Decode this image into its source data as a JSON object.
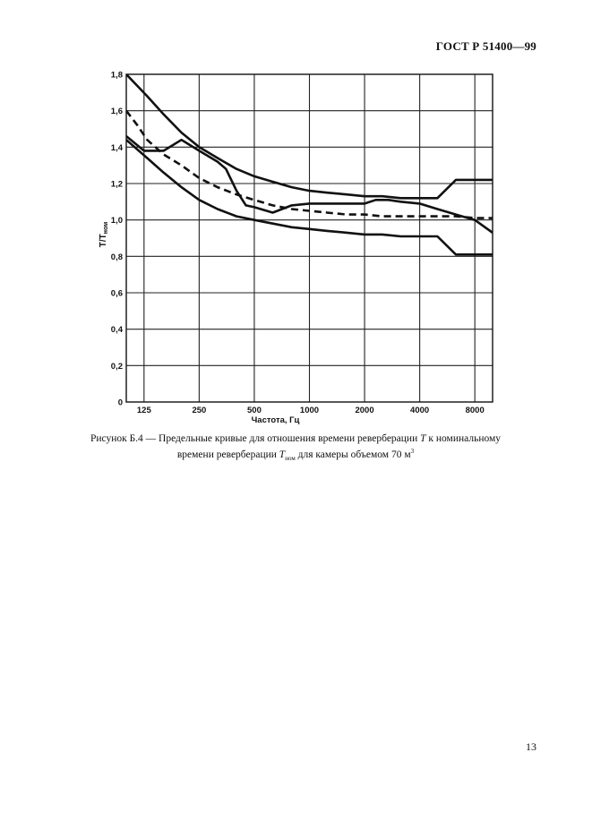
{
  "header": {
    "standard": "ГОСТ Р 51400—99"
  },
  "caption": {
    "prefix": "Рисунок Б.4 — Предельные кривые для отношения времени реверберации",
    "var_T": "T",
    "middle": "к номинальному времени реверберации",
    "var_Tnom": "T",
    "var_Tnom_sub": "ном",
    "suffix": "для камеры объемом 70 м",
    "unit_sup": "3"
  },
  "page_number": "13",
  "chart_data": {
    "type": "line",
    "xlabel": "Частота, Гц",
    "ylabel": "T/T",
    "ylabel_sub": "ном",
    "x_scale": "log",
    "xlim": [
      100,
      10000
    ],
    "ylim": [
      0,
      1.8
    ],
    "x_ticks": [
      125,
      250,
      500,
      1000,
      2000,
      4000,
      8000
    ],
    "x_tick_labels": [
      "125",
      "250",
      "500",
      "1000",
      "2000",
      "4000",
      "8000"
    ],
    "y_ticks": [
      0,
      0.2,
      0.4,
      0.6,
      0.8,
      1.0,
      1.2,
      1.4,
      1.6,
      1.8
    ],
    "y_tick_labels": [
      "0",
      "0,2",
      "0,4",
      "0,6",
      "0,8",
      "1,0",
      "1,2",
      "1,4",
      "1,6",
      "1,8"
    ],
    "grid": true,
    "series": [
      {
        "style": "solid",
        "x": [
          100,
          130,
          160,
          200,
          250,
          315,
          400,
          500,
          630,
          800,
          1000,
          1250,
          1600,
          2000,
          2500,
          3150,
          4000,
          5000,
          6300,
          8000,
          10000
        ],
        "y": [
          1.8,
          1.68,
          1.58,
          1.48,
          1.4,
          1.34,
          1.28,
          1.24,
          1.21,
          1.18,
          1.16,
          1.15,
          1.14,
          1.13,
          1.13,
          1.12,
          1.12,
          1.12,
          1.22,
          1.22,
          1.22
        ]
      },
      {
        "style": "solid",
        "x": [
          100,
          130,
          160,
          200,
          250,
          315,
          400,
          500,
          630,
          800,
          1000,
          1250,
          1600,
          2000,
          2500,
          3150,
          4000,
          5000,
          6300,
          8000,
          10000
        ],
        "y": [
          1.44,
          1.34,
          1.26,
          1.18,
          1.11,
          1.06,
          1.02,
          1.0,
          0.98,
          0.96,
          0.95,
          0.94,
          0.93,
          0.92,
          0.92,
          0.91,
          0.91,
          0.91,
          0.81,
          0.81,
          0.81
        ]
      },
      {
        "style": "dashed",
        "x": [
          100,
          115,
          130,
          160,
          200,
          250,
          315,
          400,
          500,
          630,
          800,
          1000,
          1250,
          1600,
          2000,
          2500,
          3150,
          4000,
          5000,
          6300,
          8000,
          10000
        ],
        "y": [
          1.6,
          1.52,
          1.44,
          1.36,
          1.3,
          1.23,
          1.18,
          1.14,
          1.11,
          1.08,
          1.06,
          1.05,
          1.04,
          1.03,
          1.03,
          1.02,
          1.02,
          1.02,
          1.02,
          1.02,
          1.01,
          1.01
        ]
      },
      {
        "style": "solid",
        "x": [
          100,
          125,
          160,
          200,
          250,
          315,
          350,
          400,
          450,
          500,
          630,
          800,
          1000,
          1250,
          1600,
          2000,
          2300,
          2700,
          3150,
          4000,
          5000,
          6300,
          8000,
          10000
        ],
        "y": [
          1.46,
          1.38,
          1.38,
          1.44,
          1.38,
          1.32,
          1.28,
          1.16,
          1.08,
          1.07,
          1.04,
          1.08,
          1.09,
          1.09,
          1.09,
          1.09,
          1.11,
          1.11,
          1.1,
          1.09,
          1.06,
          1.03,
          1.0,
          0.93
        ]
      }
    ]
  }
}
